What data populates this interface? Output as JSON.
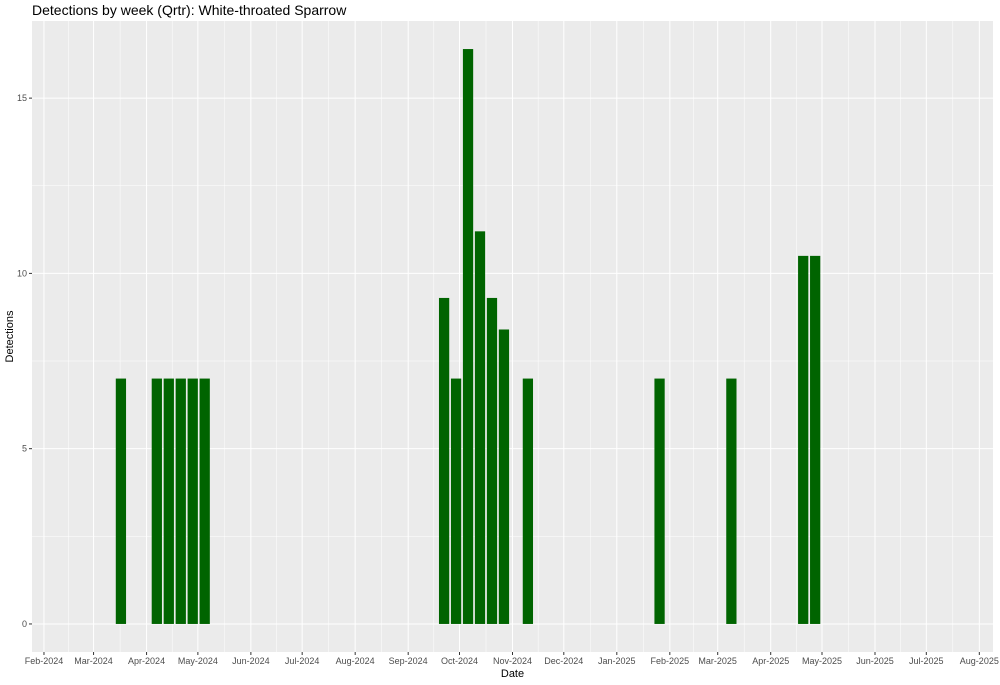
{
  "chart_data": {
    "type": "bar",
    "title": "Detections by week (Qrtr): White-throated Sparrow",
    "xlabel": "Date",
    "ylabel": "Detections",
    "bar_color": "#006400",
    "panel_color": "#ebebeb",
    "grid_color": "#ffffff",
    "grid": true,
    "legend": "none",
    "xlim": [
      "2024-01-25",
      "2025-08-09"
    ],
    "ylim": [
      -0.8,
      17.2
    ],
    "x_ticks": [
      {
        "date": "2024-02-01",
        "label": "Feb-2024"
      },
      {
        "date": "2024-03-01",
        "label": "Mar-2024"
      },
      {
        "date": "2024-04-01",
        "label": "Apr-2024"
      },
      {
        "date": "2024-05-01",
        "label": "May-2024"
      },
      {
        "date": "2024-06-01",
        "label": "Jun-2024"
      },
      {
        "date": "2024-07-01",
        "label": "Jul-2024"
      },
      {
        "date": "2024-08-01",
        "label": "Aug-2024"
      },
      {
        "date": "2024-09-01",
        "label": "Sep-2024"
      },
      {
        "date": "2024-10-01",
        "label": "Oct-2024"
      },
      {
        "date": "2024-11-01",
        "label": "Nov-2024"
      },
      {
        "date": "2024-12-01",
        "label": "Dec-2024"
      },
      {
        "date": "2025-01-01",
        "label": "Jan-2025"
      },
      {
        "date": "2025-02-01",
        "label": "Feb-2025"
      },
      {
        "date": "2025-03-01",
        "label": "Mar-2025"
      },
      {
        "date": "2025-04-01",
        "label": "Apr-2025"
      },
      {
        "date": "2025-05-01",
        "label": "May-2025"
      },
      {
        "date": "2025-06-01",
        "label": "Jun-2025"
      },
      {
        "date": "2025-07-01",
        "label": "Jul-2025"
      },
      {
        "date": "2025-08-01",
        "label": "Aug-2025"
      }
    ],
    "y_ticks": [
      0,
      5,
      10,
      15
    ],
    "y_tick_labels": [
      "0",
      "5",
      "10",
      "15"
    ],
    "bar_width_days": 6,
    "bars": [
      {
        "week": "2024-03-17",
        "value": 7.0
      },
      {
        "week": "2024-04-07",
        "value": 7.0
      },
      {
        "week": "2024-04-14",
        "value": 7.0
      },
      {
        "week": "2024-04-21",
        "value": 7.0
      },
      {
        "week": "2024-04-28",
        "value": 7.0
      },
      {
        "week": "2024-05-05",
        "value": 7.0
      },
      {
        "week": "2024-09-22",
        "value": 9.3
      },
      {
        "week": "2024-09-29",
        "value": 7.0
      },
      {
        "week": "2024-10-06",
        "value": 16.4
      },
      {
        "week": "2024-10-13",
        "value": 11.2
      },
      {
        "week": "2024-10-20",
        "value": 9.3
      },
      {
        "week": "2024-10-27",
        "value": 8.4
      },
      {
        "week": "2024-11-10",
        "value": 7.0
      },
      {
        "week": "2025-01-26",
        "value": 7.0
      },
      {
        "week": "2025-03-09",
        "value": 7.0
      },
      {
        "week": "2025-04-20",
        "value": 10.5
      },
      {
        "week": "2025-04-27",
        "value": 10.5
      }
    ]
  }
}
